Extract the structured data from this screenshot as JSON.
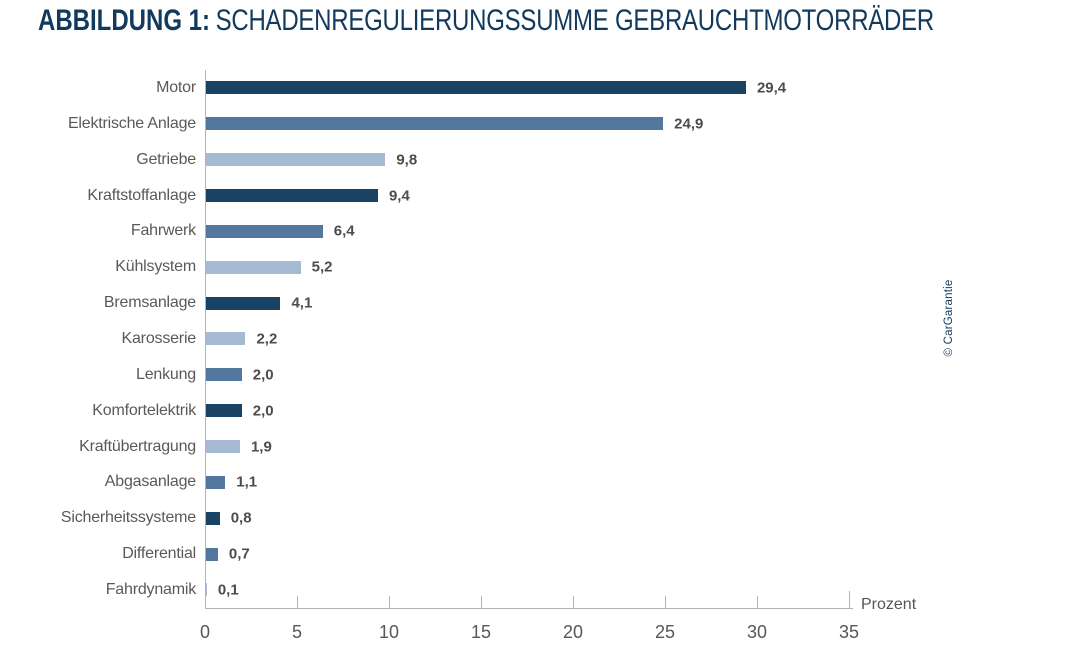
{
  "title": {
    "prefix": "ABBILDUNG 1:",
    "text": "SCHADENREGULIERUNGSSUMME GEBRAUCHTMOTORRÄDER"
  },
  "credit": "© CarGarantie",
  "chart_data": {
    "type": "bar",
    "orientation": "horizontal",
    "title": "ABBILDUNG 1: SCHADENREGULIERUNGSSUMME GEBRAUCHTMOTORRÄDER",
    "xlabel": "Prozent",
    "xlim": [
      0,
      35
    ],
    "xticks": [
      0,
      5,
      10,
      15,
      20,
      25,
      30,
      35
    ],
    "grid": false,
    "legend": "none",
    "categories": [
      "Motor",
      "Elektrische Anlage",
      "Getriebe",
      "Kraftstoffanlage",
      "Fahrwerk",
      "Kühlsystem",
      "Bremsanlage",
      "Karosserie",
      "Lenkung",
      "Komfortelektrik",
      "Kraftübertragung",
      "Abgasanlage",
      "Sicherheitssysteme",
      "Differential",
      "Fahrdynamik"
    ],
    "values": [
      29.4,
      24.9,
      9.8,
      9.4,
      6.4,
      5.2,
      4.1,
      2.2,
      2.0,
      2.0,
      1.9,
      1.1,
      0.8,
      0.7,
      0.1
    ],
    "value_labels": [
      "29,4",
      "24,9",
      "9,8",
      "9,4",
      "6,4",
      "5,2",
      "4,1",
      "2,2",
      "2,0",
      "2,0",
      "1,9",
      "1,1",
      "0,8",
      "0,7",
      "0,1"
    ],
    "bar_color_keys": [
      "dark",
      "medium",
      "light",
      "dark",
      "medium",
      "light",
      "dark",
      "light",
      "medium",
      "dark",
      "light",
      "medium",
      "dark",
      "medium",
      "light"
    ],
    "palette": {
      "dark": "#1A4263",
      "medium": "#54779E",
      "light": "#A7BAD3"
    },
    "axis_color": "#B3B3B3",
    "label_color": "#59595B",
    "value_color": "#4C4C4E",
    "title_color": "#12395E"
  }
}
